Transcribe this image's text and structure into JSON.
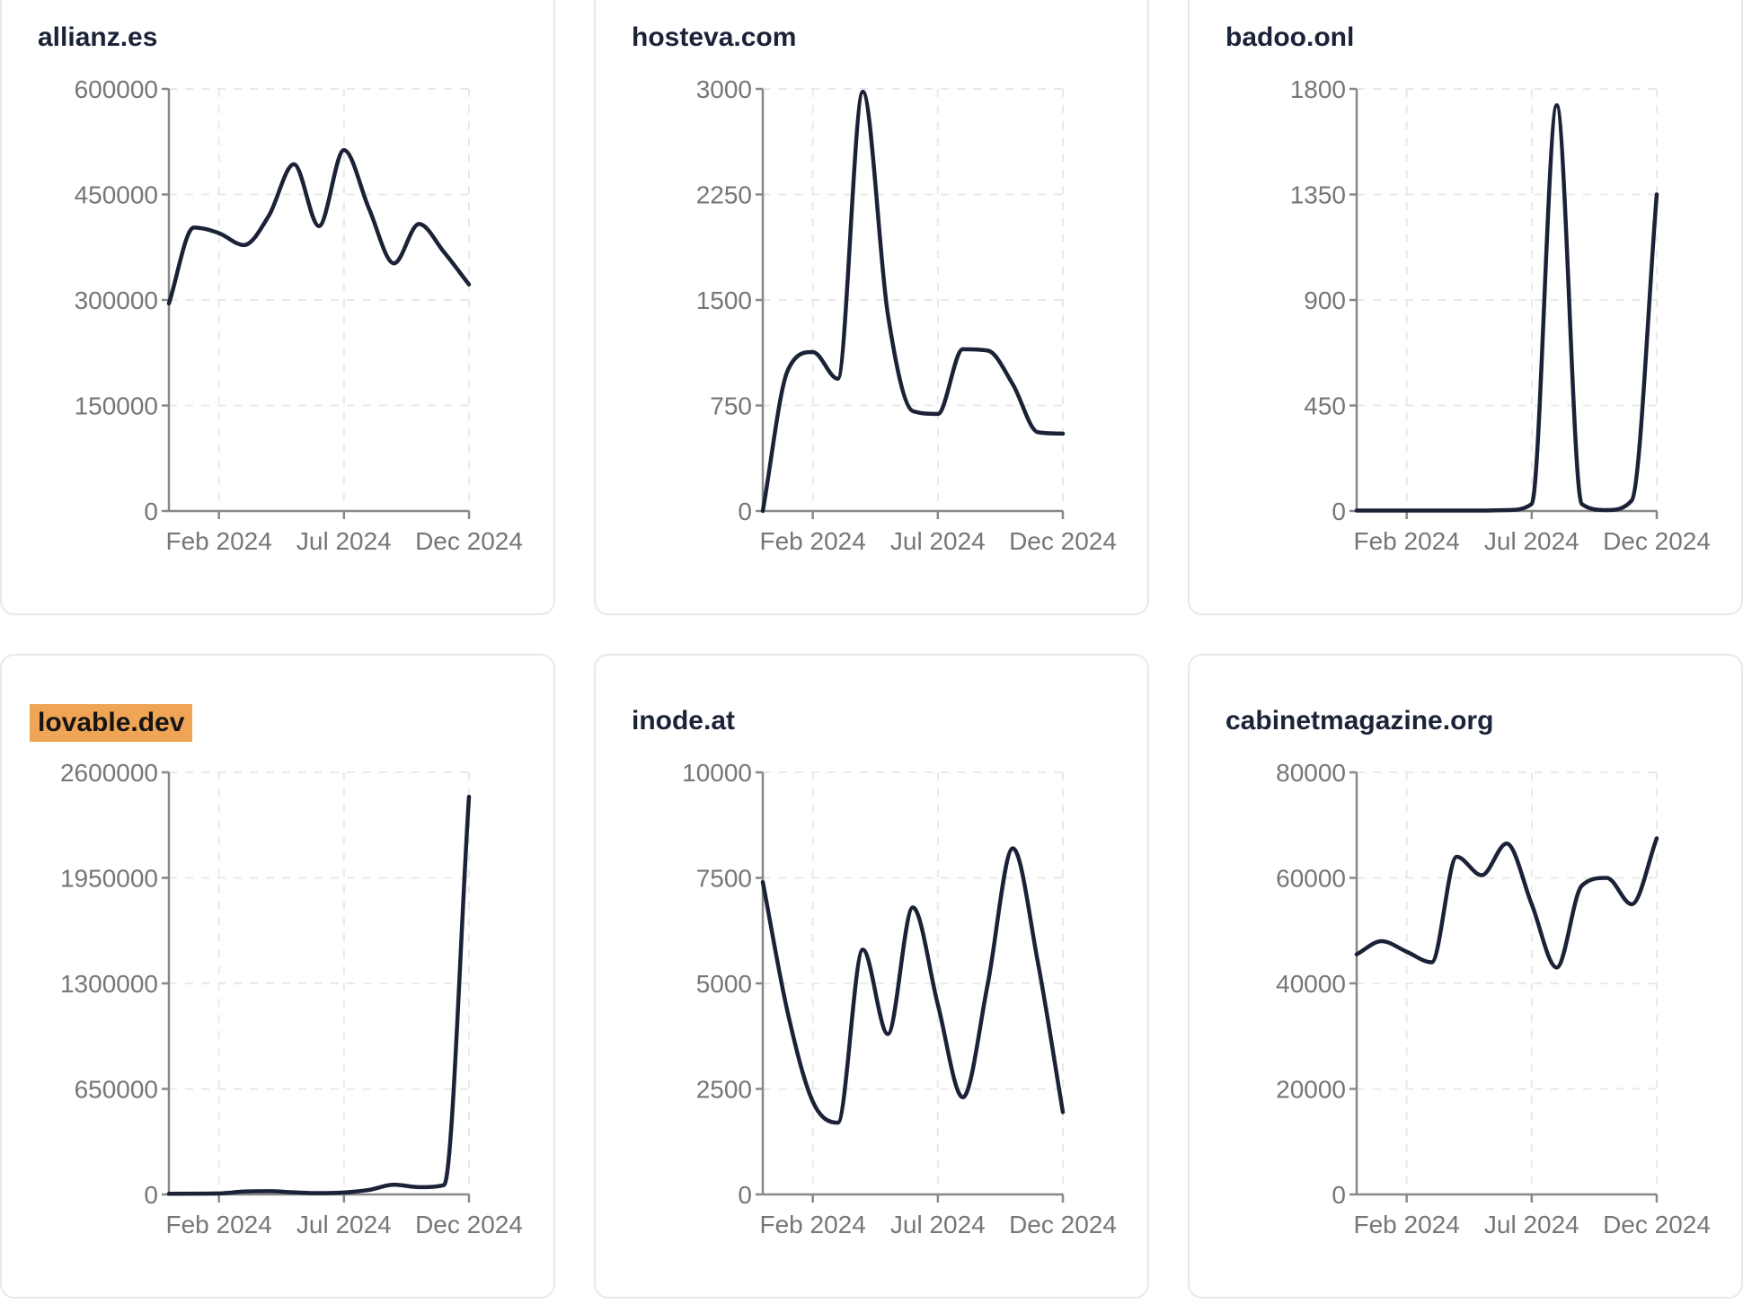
{
  "styles": {
    "line_color": "#1b2137",
    "title_color": "#1b2338",
    "tick_label_color": "#767676",
    "axis_color": "#888888",
    "grid_color": "#e9e9e9",
    "card_border_color": "#e6e9f0",
    "card_bg": "#ffffff",
    "page_bg": "#ffffff",
    "highlight_bg": "#f0a456",
    "highlight_text": "#151515"
  },
  "chart_data": [
    {
      "type": "line",
      "title": "allianz.es",
      "highlighted": false,
      "x_ticks": [
        "Feb 2024",
        "Jul 2024",
        "Dec 2024"
      ],
      "x_range": "Jan 2024 – Dec 2024",
      "ylim": [
        0,
        600000
      ],
      "y_ticks": [
        0,
        150000,
        300000,
        450000,
        600000
      ],
      "grid": true,
      "values": [
        295000,
        403000,
        395000,
        378000,
        420000,
        493000,
        405000,
        513000,
        430000,
        352000,
        408000,
        368000,
        322000
      ]
    },
    {
      "type": "line",
      "title": "hosteva.com",
      "highlighted": false,
      "x_ticks": [
        "Feb 2024",
        "Jul 2024",
        "Dec 2024"
      ],
      "x_range": "Jan 2024 – Dec 2024",
      "ylim": [
        0,
        3000
      ],
      "y_ticks": [
        0,
        750,
        1500,
        2250,
        3000
      ],
      "grid": true,
      "values": [
        0,
        1000,
        1130,
        940,
        2980,
        1400,
        710,
        690,
        1150,
        1140,
        900,
        560,
        550
      ]
    },
    {
      "type": "line",
      "title": "badoo.onl",
      "highlighted": false,
      "x_ticks": [
        "Feb 2024",
        "Jul 2024",
        "Dec 2024"
      ],
      "x_range": "Jan 2024 – Dec 2024",
      "ylim": [
        0,
        1800
      ],
      "y_ticks": [
        0,
        450,
        900,
        1350,
        1800
      ],
      "grid": true,
      "values": [
        2,
        2,
        2,
        2,
        2,
        2,
        4,
        30,
        1730,
        30,
        4,
        45,
        1350
      ]
    },
    {
      "type": "line",
      "title": "lovable.dev",
      "highlighted": true,
      "x_ticks": [
        "Feb 2024",
        "Jul 2024",
        "Dec 2024"
      ],
      "x_range": "Jan 2024 – Dec 2024",
      "ylim": [
        0,
        2600000
      ],
      "y_ticks": [
        0,
        650000,
        1300000,
        1950000,
        2600000
      ],
      "grid": true,
      "values": [
        4000,
        5000,
        6000,
        18000,
        20000,
        13000,
        8000,
        12000,
        28000,
        60000,
        45000,
        58000,
        2450000
      ]
    },
    {
      "type": "line",
      "title": "inode.at",
      "highlighted": false,
      "x_ticks": [
        "Feb 2024",
        "Jul 2024",
        "Dec 2024"
      ],
      "x_range": "Jan 2024 – Dec 2024",
      "ylim": [
        0,
        10000
      ],
      "y_ticks": [
        0,
        2500,
        5000,
        7500,
        10000
      ],
      "grid": true,
      "values": [
        7400,
        4300,
        2200,
        1700,
        5800,
        3800,
        6800,
        4500,
        2300,
        5000,
        8200,
        5500,
        1950
      ]
    },
    {
      "type": "line",
      "title": "cabinetmagazine.org",
      "highlighted": false,
      "x_ticks": [
        "Feb 2024",
        "Jul 2024",
        "Dec 2024"
      ],
      "x_range": "Jan 2024 – Dec 2024",
      "ylim": [
        0,
        80000
      ],
      "y_ticks": [
        0,
        20000,
        40000,
        60000,
        80000
      ],
      "grid": true,
      "values": [
        45500,
        48000,
        46000,
        44000,
        64000,
        60500,
        66500,
        55000,
        43000,
        58500,
        60000,
        55000,
        67500
      ]
    }
  ]
}
